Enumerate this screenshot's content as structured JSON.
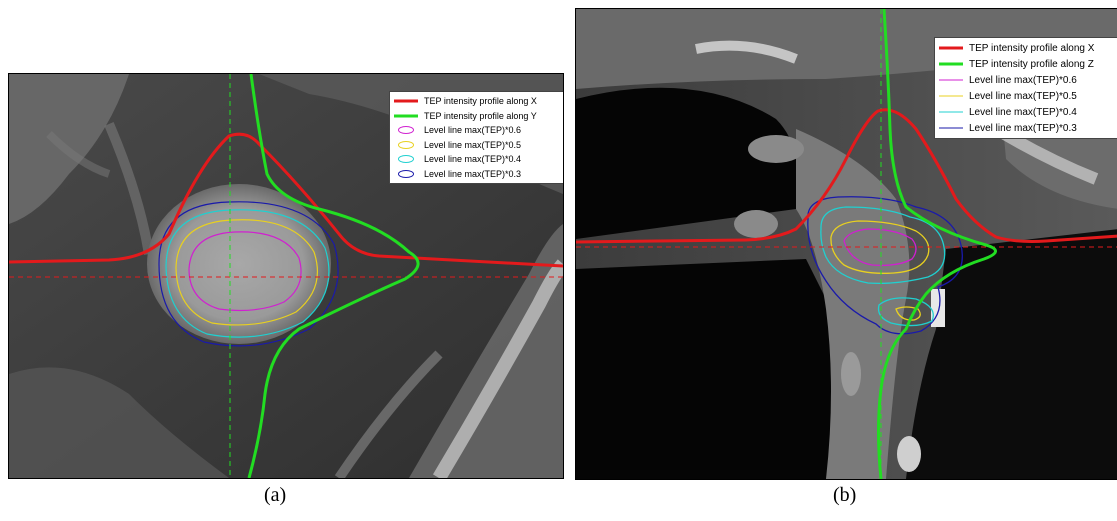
{
  "panels": [
    {
      "id": "a",
      "caption": "(a)",
      "legend": [
        {
          "label": "TEP intensity profile along X",
          "color": "#e31a1c",
          "style": "line"
        },
        {
          "label": "TEP intensity profile along Y",
          "color": "#22dd22",
          "style": "line"
        },
        {
          "label": "Level line max(TEP)*0.6",
          "color": "#d020d0",
          "style": "ellipse"
        },
        {
          "label": "Level line max(TEP)*0.5",
          "color": "#e8d020",
          "style": "ellipse"
        },
        {
          "label": "Level line max(TEP)*0.4",
          "color": "#20d0d0",
          "style": "ellipse"
        },
        {
          "label": "Level line max(TEP)*0.3",
          "color": "#1a1aaa",
          "style": "ellipse"
        }
      ]
    },
    {
      "id": "b",
      "caption": "(b)",
      "legend": [
        {
          "label": "TEP intensity profile along X",
          "color": "#e31a1c",
          "style": "line"
        },
        {
          "label": "TEP intensity profile along Z",
          "color": "#22dd22",
          "style": "line"
        },
        {
          "label": "Level line max(TEP)*0.6",
          "color": "#d020d0",
          "style": "line"
        },
        {
          "label": "Level line max(TEP)*0.5",
          "color": "#e8d020",
          "style": "line"
        },
        {
          "label": "Level line max(TEP)*0.4",
          "color": "#20d0d0",
          "style": "line"
        },
        {
          "label": "Level line max(TEP)*0.3",
          "color": "#1a1aaa",
          "style": "line"
        }
      ]
    }
  ]
}
